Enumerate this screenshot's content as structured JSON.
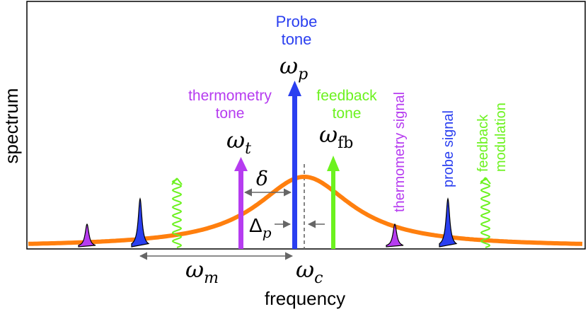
{
  "axes": {
    "xlabel": "frequency",
    "ylabel": "spectrum"
  },
  "colors": {
    "lorentzian": "#ff7f0e",
    "thermometry": "#b63cf0",
    "probe": "#2a3ff0",
    "feedback": "#6cf21f",
    "gray": "#666666"
  },
  "tones": {
    "probe": {
      "line1": "Probe",
      "line2": "tone",
      "symbol": "ω",
      "sub": "p"
    },
    "thermometry": {
      "line1": "thermometry",
      "line2": "tone",
      "symbol": "ω",
      "sub": "t"
    },
    "feedback": {
      "line1": "feedback",
      "line2": "tone",
      "symbol": "ω",
      "sub": "fb"
    }
  },
  "signals": {
    "thermometry": "thermometry signal",
    "probe": "probe signal",
    "feedback_line1": "feedback",
    "feedback_line2": "modulation"
  },
  "annotations": {
    "delta_symbol": "δ",
    "Delta_symbol": "Δ",
    "Delta_sub": "p",
    "omega_m_symbol": "ω",
    "omega_m_sub": "m",
    "omega_c_symbol": "ω",
    "omega_c_sub": "c"
  }
}
